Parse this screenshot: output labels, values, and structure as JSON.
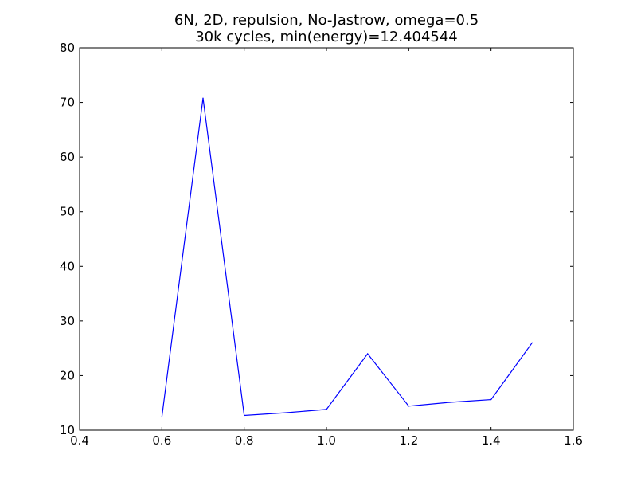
{
  "chart_data": {
    "type": "line",
    "title_lines": [
      "6N, 2D, repulsion, No-Jastrow, omega=0.5",
      "30k cycles, min(energy)=12.404544"
    ],
    "xlabel": "",
    "ylabel": "",
    "xlim": [
      0.4,
      1.6
    ],
    "ylim": [
      10,
      80
    ],
    "xticks": [
      "0.4",
      "0.6",
      "0.8",
      "1.0",
      "1.2",
      "1.4",
      "1.6"
    ],
    "yticks": [
      "10",
      "20",
      "30",
      "40",
      "50",
      "60",
      "70",
      "80"
    ],
    "grid": false,
    "legend": "none",
    "series": [
      {
        "color": "#0000ff",
        "x": [
          0.6,
          0.7,
          0.8,
          0.9,
          1.0,
          1.1,
          1.2,
          1.3,
          1.4,
          1.5
        ],
        "y": [
          12.4,
          70.8,
          12.7,
          13.2,
          13.8,
          24.0,
          14.4,
          15.1,
          15.6,
          26.0
        ]
      }
    ]
  }
}
